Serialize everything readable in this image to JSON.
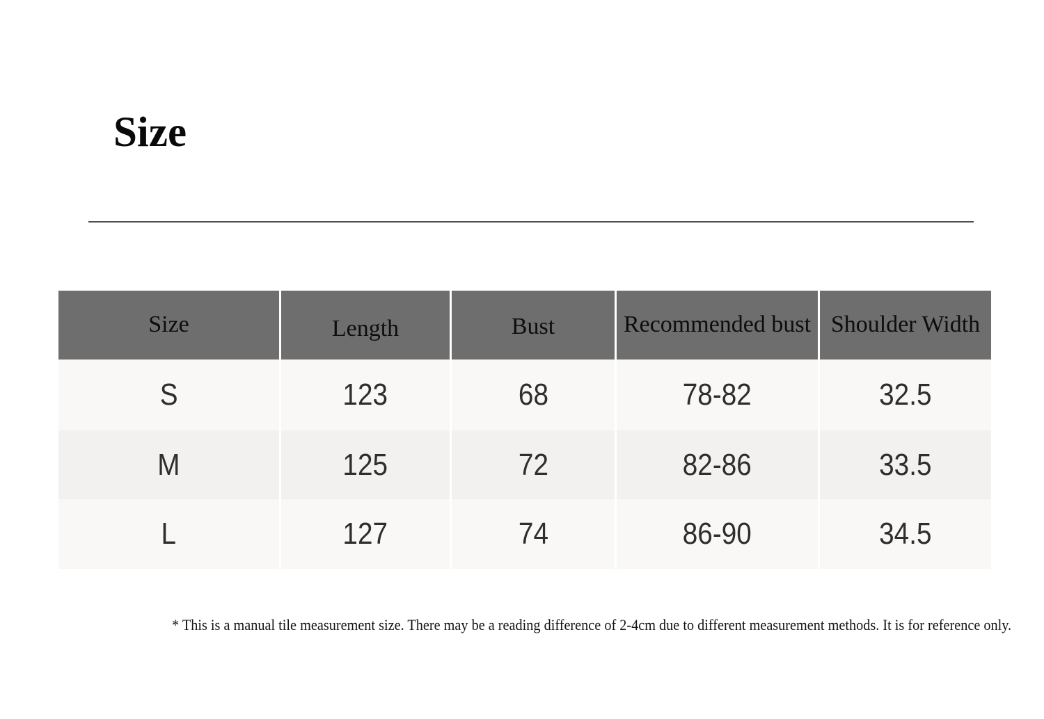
{
  "page_title": "Size",
  "size_table": {
    "columns": [
      "Size",
      "Length",
      "Bust",
      "Recommended bust",
      "Shoulder Width"
    ],
    "rows": [
      {
        "size": "S",
        "length": "123",
        "bust": "68",
        "recommended_bust": "78-82",
        "shoulder_width": "32.5"
      },
      {
        "size": "M",
        "length": "125",
        "bust": "72",
        "recommended_bust": "82-86",
        "shoulder_width": "33.5"
      },
      {
        "size": "L",
        "length": "127",
        "bust": "74",
        "recommended_bust": "86-90",
        "shoulder_width": "34.5"
      }
    ]
  },
  "footnote": "* This is a manual tile measurement size. There may be a reading difference of 2-4cm due to different measurement methods. It is for reference only.",
  "colors": {
    "header_bg": "#6e6e6e",
    "row_bg": "#f9f8f7",
    "row_bg_alt": "#f2f1ef",
    "divider": "#4e4e4e",
    "data_text": "#2e2e2e"
  }
}
